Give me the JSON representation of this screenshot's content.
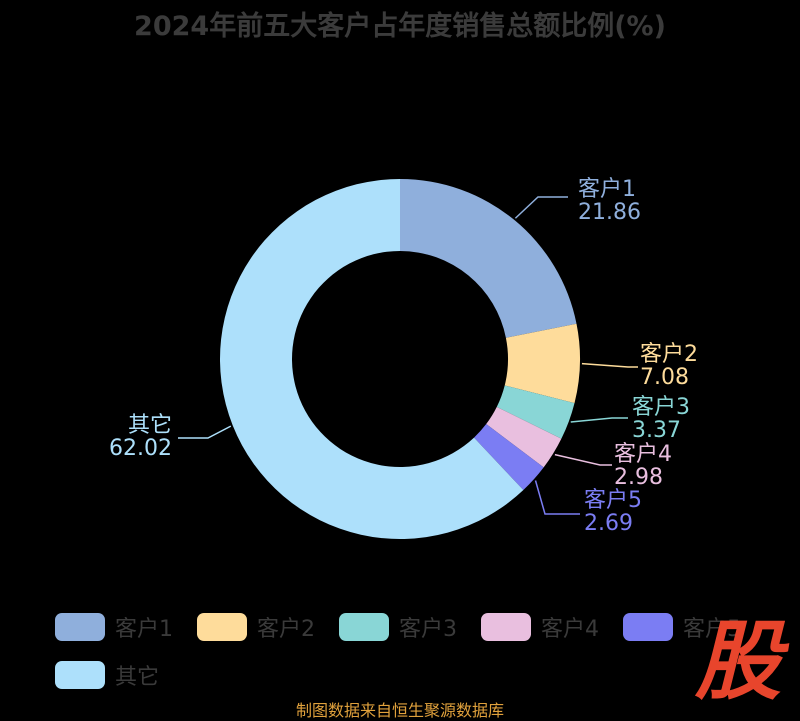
{
  "chart_data": {
    "type": "pie",
    "title": "2024年前五大客户占年度销售总额比例(%)",
    "series": [
      {
        "name": "客户1",
        "value": 21.86,
        "value_label": "21.86",
        "color": "#8fafdc"
      },
      {
        "name": "客户2",
        "value": 7.08,
        "value_label": "7.08",
        "color": "#fedc9b"
      },
      {
        "name": "客户3",
        "value": 3.37,
        "value_label": "3.37",
        "color": "#89d6d6"
      },
      {
        "name": "客户4",
        "value": 2.98,
        "value_label": "2.98",
        "color": "#e9bfdf"
      },
      {
        "name": "客户5",
        "value": 2.69,
        "value_label": "2.69",
        "color": "#7b7df3"
      },
      {
        "name": "其它",
        "value": 62.02,
        "value_label": "62.02",
        "color": "#ade0fb"
      }
    ],
    "legend_position": "bottom",
    "donut": true
  },
  "source": "制图数据来自恒生聚源数据库",
  "watermark": "股"
}
